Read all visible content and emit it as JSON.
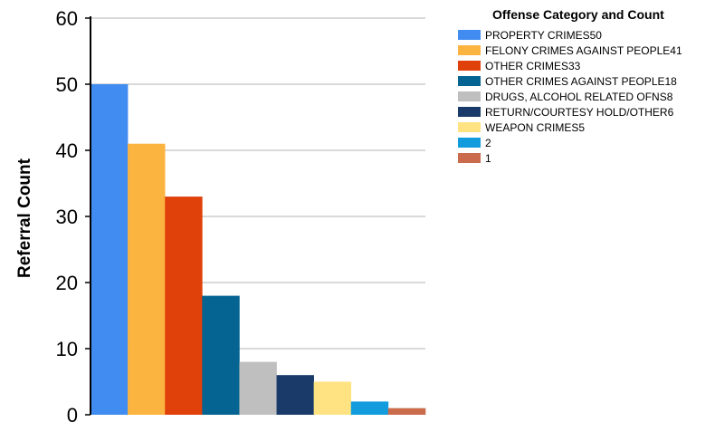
{
  "chart_data": {
    "type": "bar",
    "title": "",
    "xlabel": "",
    "ylabel": "Referral Count",
    "ylim": [
      0,
      60
    ],
    "yticks": [
      0,
      10,
      20,
      30,
      40,
      50,
      60
    ],
    "grid": true,
    "legend_title": "Offense Category and Count",
    "legend_position": "top-right",
    "categories": [
      "PROPERTY CRIMES50",
      "FELONY CRIMES AGAINST PEOPLE41",
      "OTHER CRIMES33",
      "OTHER CRIMES AGAINST PEOPLE18",
      "DRUGS, ALCOHOL RELATED OFNS8",
      "RETURN/COURTESY HOLD/OTHER6",
      "WEAPON CRIMES5",
      "2",
      "1"
    ],
    "values": [
      50,
      41,
      33,
      18,
      8,
      6,
      5,
      2,
      1
    ],
    "colors": [
      "#418CF0",
      "#FCB441",
      "#E0400A",
      "#056492",
      "#BFBFBF",
      "#1A3B69",
      "#FFE382",
      "#129CDD",
      "#CA6B4B"
    ]
  }
}
